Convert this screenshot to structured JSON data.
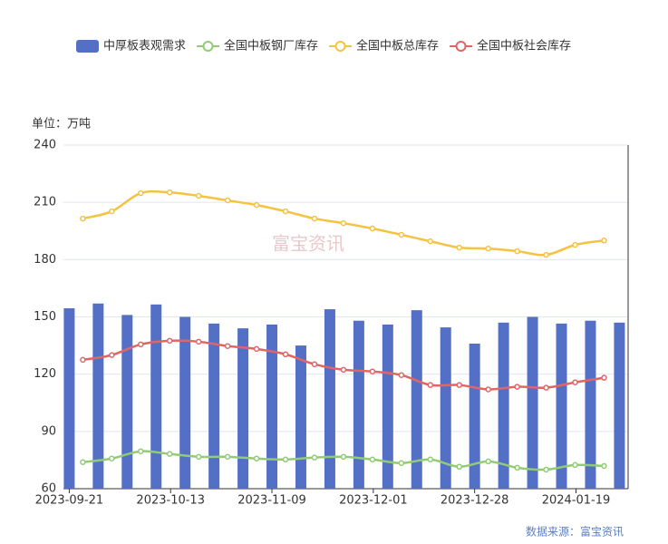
{
  "chart_data": {
    "type": "bar-line",
    "unit_label": "单位：万吨",
    "source": "数据来源：富宝资讯",
    "watermark": "富宝资讯",
    "categories": [
      null,
      null,
      null,
      null,
      null,
      null,
      null,
      null,
      null,
      null,
      null,
      null,
      null,
      null,
      null,
      null,
      null,
      null,
      null,
      null
    ],
    "xlim": [
      -0.2,
      19.3
    ],
    "xticks": [
      {
        "value": 0,
        "label": "2023-09-21"
      },
      {
        "value": 3.5,
        "label": "2023-10-13"
      },
      {
        "value": 7,
        "label": "2023-11-09"
      },
      {
        "value": 10.5,
        "label": "2023-12-01"
      },
      {
        "value": 14,
        "label": "2023-12-28"
      },
      {
        "value": 17.5,
        "label": "2024-01-19"
      }
    ],
    "ylim": [
      60,
      240
    ],
    "yticks": [
      60,
      90,
      120,
      150,
      180,
      210,
      240
    ],
    "grid": true,
    "series": [
      {
        "name": "中厚板表观需求",
        "type": "bar",
        "color": "#5470c6",
        "values": [
          154.5,
          157,
          151,
          156.5,
          150,
          146.5,
          144,
          146,
          135,
          154,
          148,
          146,
          153.5,
          144.5,
          136,
          147,
          150,
          146.5,
          148,
          147
        ]
      },
      {
        "name": "全国中板钢厂库存",
        "type": "line",
        "color": "#91cc75",
        "values": [
          73.9,
          75.8,
          79.6,
          78.2,
          76.7,
          76.7,
          75.8,
          75.3,
          76.3,
          76.7,
          75.3,
          73.4,
          75.3,
          71.5,
          74.3,
          71,
          70,
          72.4,
          71.9,
          null
        ]
      },
      {
        "name": "全国中板总库存",
        "type": "line",
        "color": "#f5c242",
        "values": [
          201.5,
          205.3,
          214.8,
          215.2,
          213.4,
          211,
          208.6,
          205.3,
          201.5,
          199.1,
          196.3,
          193,
          189.6,
          186.3,
          185.8,
          184.4,
          182.5,
          187.7,
          190,
          null
        ]
      },
      {
        "name": "全国中板社会库存",
        "type": "line",
        "color": "#e06666",
        "values": [
          127.5,
          130,
          135.6,
          137.5,
          137,
          134.7,
          133.2,
          130.4,
          125.2,
          122.3,
          121.4,
          119.5,
          114.3,
          114.3,
          112,
          113.4,
          112.9,
          115.7,
          118.1,
          null
        ]
      }
    ]
  }
}
